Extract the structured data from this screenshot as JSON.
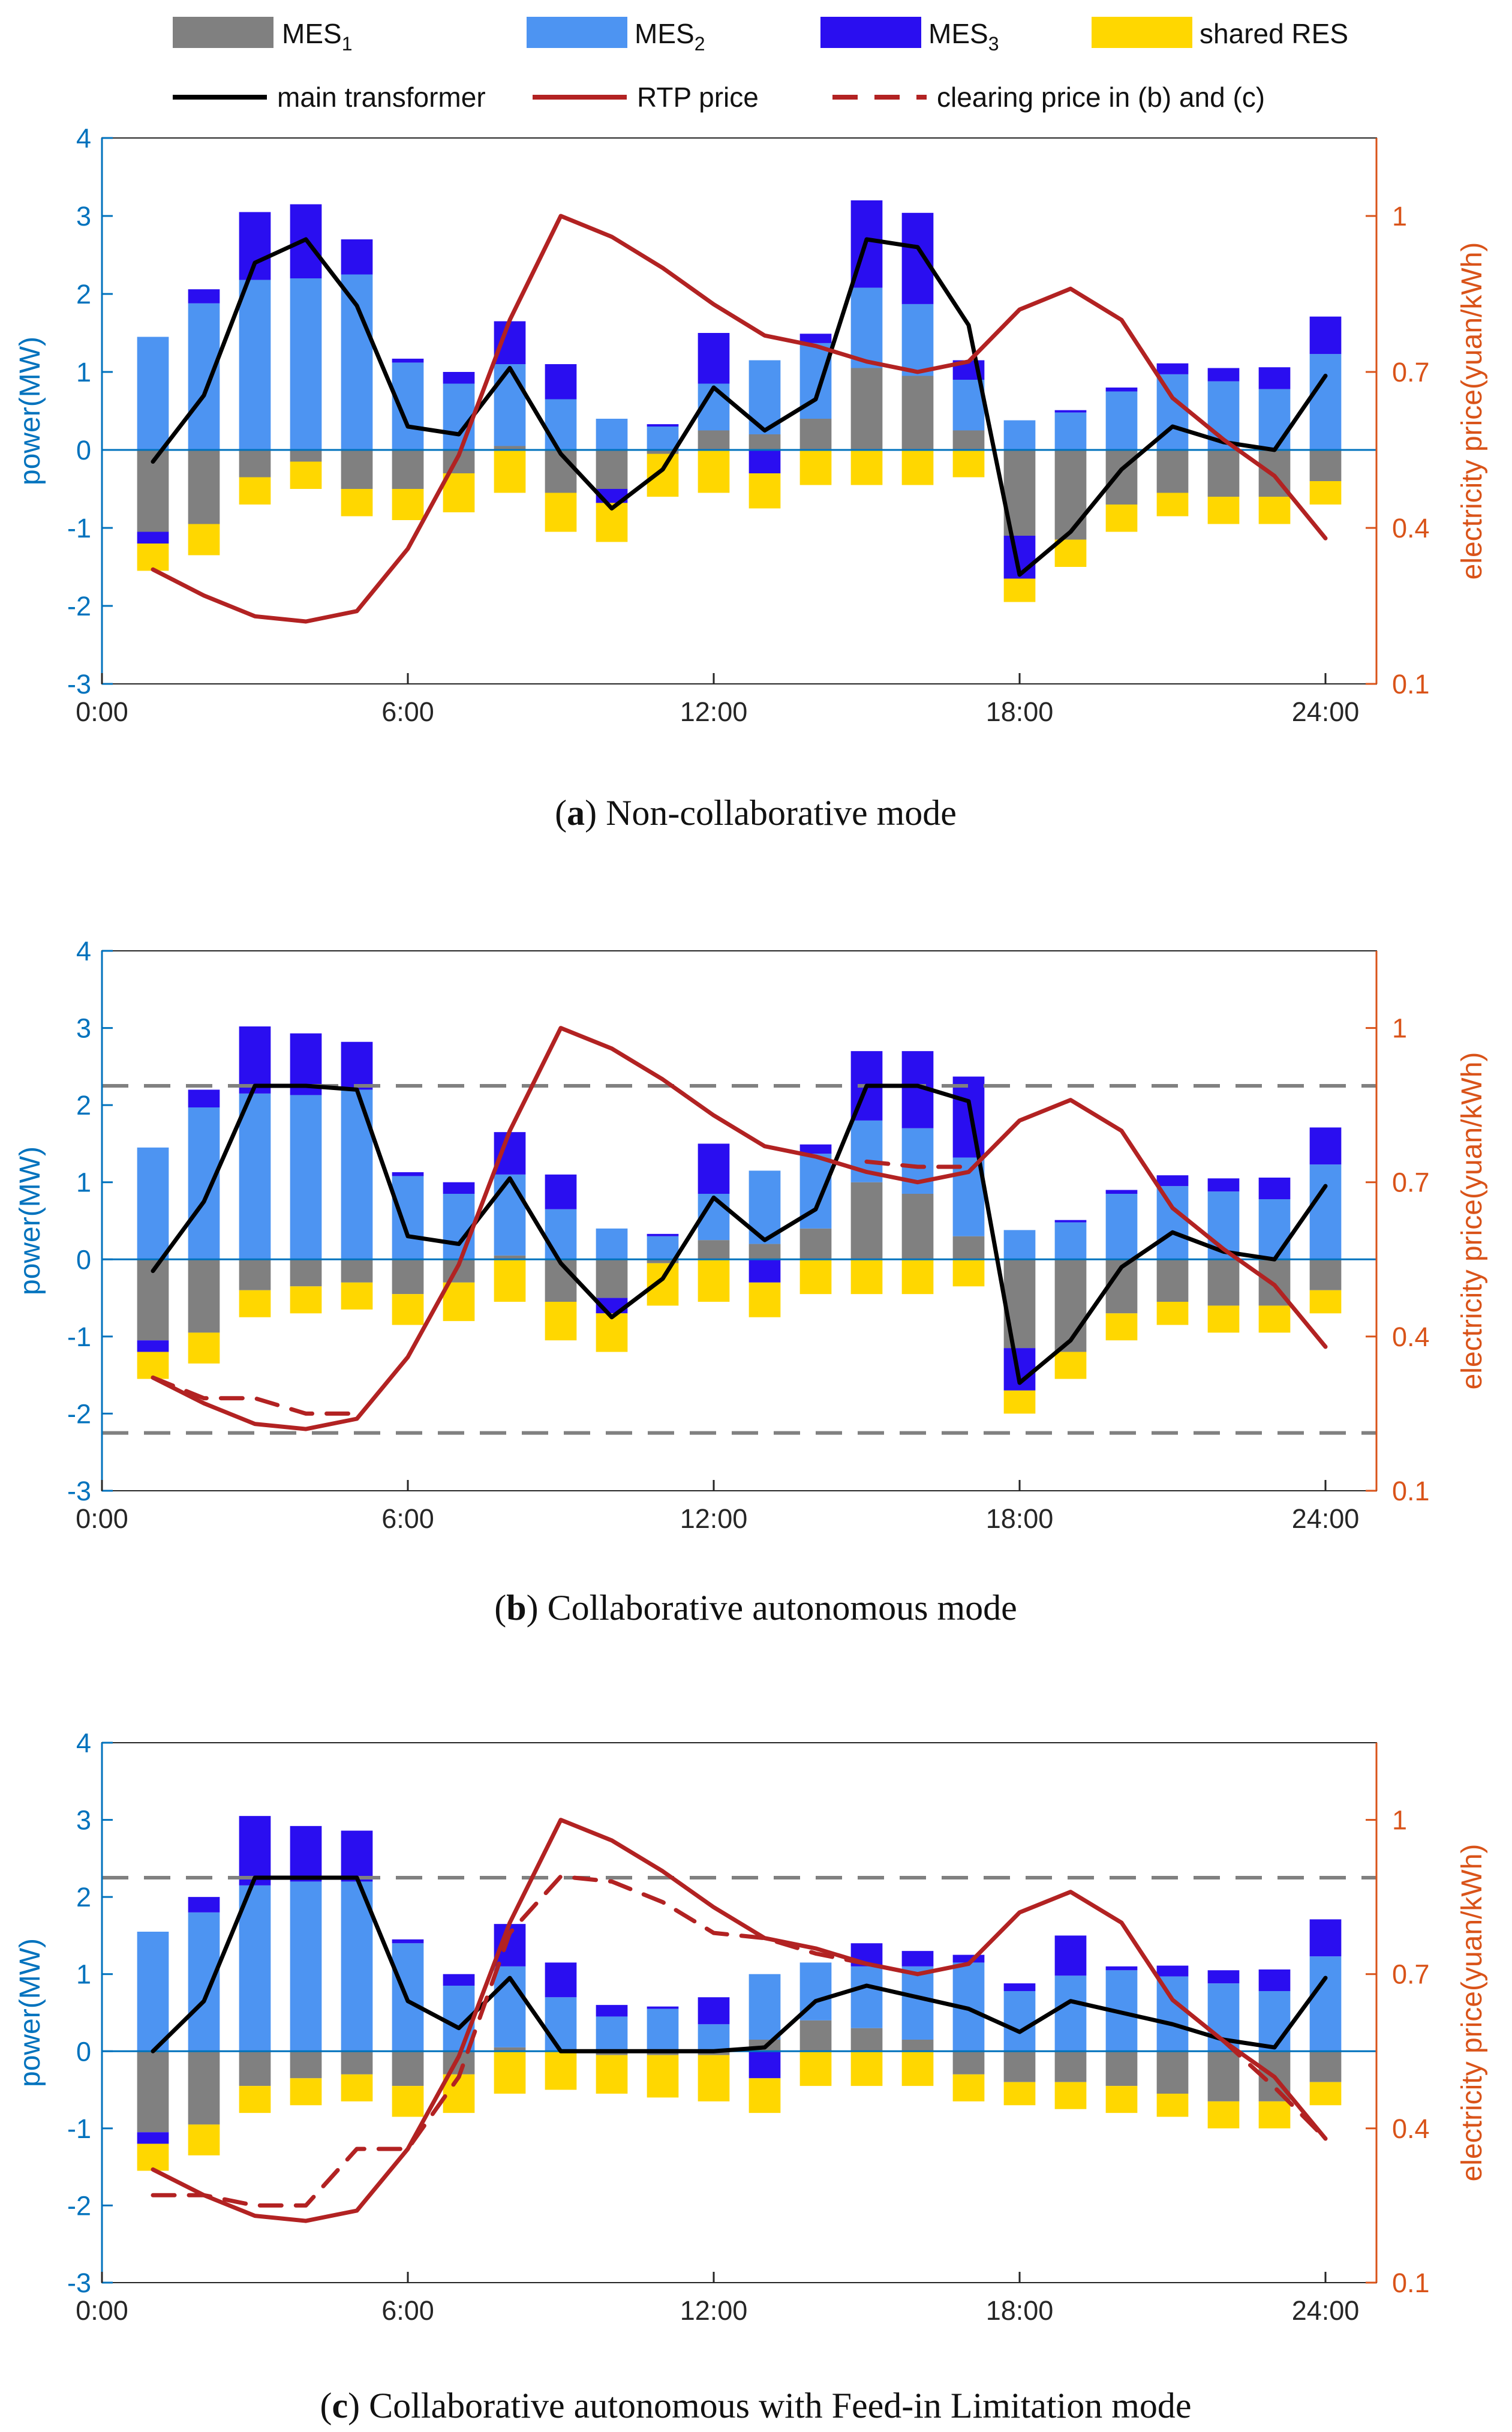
{
  "legend": {
    "mes1": {
      "base": "MES",
      "sub": "1"
    },
    "mes2": {
      "base": "MES",
      "sub": "2"
    },
    "mes3": {
      "base": "MES",
      "sub": "3"
    },
    "shared_res": "shared RES",
    "main_transformer": "main transformer",
    "rtp_price": "RTP price",
    "clearing_price": "clearing price in (b) and (c)"
  },
  "colors": {
    "mes1": "#808080",
    "mes2": "#4d94f2",
    "mes3": "#2a0ef0",
    "shared_res": "#ffd700",
    "transformer": "#000000",
    "rtp": "#b22222",
    "clearing": "#b22222",
    "limit": "#808080",
    "left_axis": "#0072bd",
    "right_axis": "#d95319",
    "zero_line": "#0072bd"
  },
  "chart_data": [
    {
      "panel": "a",
      "type": "bar",
      "caption_letter": "a",
      "caption_text": "Non-collaborative mode",
      "ylabel": "power(MW)",
      "ylabel_right": "electricity price(yuan/kWh)",
      "ylim": [
        -3,
        4
      ],
      "yticks": [
        -3,
        -2,
        -1,
        0,
        1,
        2,
        3,
        4
      ],
      "ylim_right": [
        0.1,
        1.15
      ],
      "yticks_right": [
        0.1,
        0.4,
        0.7,
        1
      ],
      "xlim": [
        0,
        25
      ],
      "xticks": [
        0,
        6,
        12,
        18,
        24
      ],
      "xtick_labels": [
        "0:00",
        "6:00",
        "12:00",
        "18:00",
        "24:00"
      ],
      "x": [
        1,
        2,
        3,
        4,
        5,
        6,
        7,
        8,
        9,
        10,
        11,
        12,
        13,
        14,
        15,
        16,
        17,
        18,
        19,
        20,
        21,
        22,
        23,
        24
      ],
      "series": [
        {
          "name": "MES1",
          "key": "mes1",
          "values": [
            -1.05,
            -0.95,
            -0.35,
            -0.15,
            -0.5,
            -0.5,
            -0.3,
            0.05,
            -0.55,
            -0.5,
            -0.05,
            0.25,
            0.2,
            0.4,
            1.05,
            0.95,
            0.25,
            -1.1,
            -1.15,
            -0.7,
            -0.55,
            -0.6,
            -0.6,
            -0.4
          ]
        },
        {
          "name": "MES2",
          "key": "mes2",
          "values": [
            1.45,
            1.88,
            2.18,
            2.2,
            2.25,
            1.12,
            0.85,
            1.05,
            0.65,
            0.4,
            0.3,
            0.6,
            0.95,
            0.97,
            1.03,
            0.92,
            0.65,
            0.38,
            0.48,
            0.75,
            0.97,
            0.88,
            0.78,
            1.23
          ]
        },
        {
          "name": "MES3",
          "key": "mes3",
          "values": [
            -0.15,
            0.18,
            0.87,
            0.95,
            0.45,
            0.05,
            0.15,
            0.55,
            0.45,
            -0.18,
            0.03,
            0.65,
            -0.3,
            0.12,
            1.12,
            1.17,
            0.25,
            -0.55,
            0.03,
            0.05,
            0.14,
            0.17,
            0.28,
            0.48
          ]
        },
        {
          "name": "shared RES",
          "key": "shared_res",
          "values": [
            -0.35,
            -0.4,
            -0.35,
            -0.35,
            -0.35,
            -0.4,
            -0.5,
            -0.55,
            -0.5,
            -0.5,
            -0.55,
            -0.55,
            -0.45,
            -0.45,
            -0.45,
            -0.45,
            -0.35,
            -0.3,
            -0.35,
            -0.35,
            -0.3,
            -0.35,
            -0.35,
            -0.3
          ]
        }
      ],
      "transformer": [
        -0.15,
        0.7,
        2.4,
        2.7,
        1.85,
        0.3,
        0.2,
        1.05,
        -0.05,
        -0.75,
        -0.25,
        0.8,
        0.25,
        0.65,
        2.7,
        2.6,
        1.6,
        -1.6,
        -1.05,
        -0.25,
        0.3,
        0.1,
        0.0,
        0.95
      ],
      "rtp": [
        0.32,
        0.27,
        0.23,
        0.22,
        0.24,
        0.36,
        0.54,
        0.8,
        1.0,
        0.96,
        0.9,
        0.83,
        0.77,
        0.75,
        0.72,
        0.7,
        0.72,
        0.82,
        0.86,
        0.8,
        0.65,
        0.57,
        0.5,
        0.38
      ],
      "clearing": [],
      "limit_lines": []
    },
    {
      "panel": "b",
      "type": "bar",
      "caption_letter": "b",
      "caption_text": "Collaborative autonomous mode",
      "ylabel": "power(MW)",
      "ylabel_right": "electricity price(yuan/kWh)",
      "ylim": [
        -3,
        4
      ],
      "yticks": [
        -3,
        -2,
        -1,
        0,
        1,
        2,
        3,
        4
      ],
      "ylim_right": [
        0.1,
        1.15
      ],
      "yticks_right": [
        0.1,
        0.4,
        0.7,
        1
      ],
      "xlim": [
        0,
        25
      ],
      "xticks": [
        0,
        6,
        12,
        18,
        24
      ],
      "xtick_labels": [
        "0:00",
        "6:00",
        "12:00",
        "18:00",
        "24:00"
      ],
      "x": [
        1,
        2,
        3,
        4,
        5,
        6,
        7,
        8,
        9,
        10,
        11,
        12,
        13,
        14,
        15,
        16,
        17,
        18,
        19,
        20,
        21,
        22,
        23,
        24
      ],
      "series": [
        {
          "name": "MES1",
          "key": "mes1",
          "values": [
            -1.05,
            -0.95,
            -0.4,
            -0.35,
            -0.3,
            -0.45,
            -0.3,
            0.05,
            -0.55,
            -0.5,
            -0.05,
            0.25,
            0.2,
            0.4,
            1.0,
            0.85,
            0.3,
            -1.15,
            -1.2,
            -0.7,
            -0.55,
            -0.6,
            -0.6,
            -0.4
          ]
        },
        {
          "name": "MES2",
          "key": "mes2",
          "values": [
            1.45,
            1.97,
            2.15,
            2.13,
            2.2,
            1.08,
            0.85,
            1.05,
            0.65,
            0.4,
            0.3,
            0.6,
            0.95,
            0.97,
            0.8,
            0.85,
            1.02,
            0.38,
            0.48,
            0.85,
            0.95,
            0.88,
            0.78,
            1.23
          ]
        },
        {
          "name": "MES3",
          "key": "mes3",
          "values": [
            -0.15,
            0.23,
            0.87,
            0.8,
            0.62,
            0.05,
            0.15,
            0.55,
            0.45,
            -0.2,
            0.03,
            0.65,
            -0.3,
            0.12,
            0.9,
            1.0,
            1.05,
            -0.55,
            0.03,
            0.05,
            0.14,
            0.17,
            0.28,
            0.48
          ]
        },
        {
          "name": "shared RES",
          "key": "shared_res",
          "values": [
            -0.35,
            -0.4,
            -0.35,
            -0.35,
            -0.35,
            -0.4,
            -0.5,
            -0.55,
            -0.5,
            -0.5,
            -0.55,
            -0.55,
            -0.45,
            -0.45,
            -0.45,
            -0.45,
            -0.35,
            -0.3,
            -0.35,
            -0.35,
            -0.3,
            -0.35,
            -0.35,
            -0.3
          ]
        }
      ],
      "transformer": [
        -0.15,
        0.75,
        2.25,
        2.25,
        2.2,
        0.3,
        0.2,
        1.05,
        -0.05,
        -0.75,
        -0.25,
        0.8,
        0.25,
        0.65,
        2.25,
        2.25,
        2.05,
        -1.6,
        -1.05,
        -0.1,
        0.35,
        0.1,
        0.0,
        0.95
      ],
      "rtp": [
        0.32,
        0.27,
        0.23,
        0.22,
        0.24,
        0.36,
        0.54,
        0.8,
        1.0,
        0.96,
        0.9,
        0.83,
        0.77,
        0.75,
        0.72,
        0.7,
        0.72,
        0.82,
        0.86,
        0.8,
        0.65,
        0.57,
        0.5,
        0.38
      ],
      "clearing": [
        0.32,
        0.28,
        0.28,
        0.25,
        0.25,
        null,
        null,
        null,
        null,
        null,
        null,
        null,
        null,
        null,
        0.74,
        0.73,
        0.73,
        null,
        null,
        null,
        null,
        null,
        null,
        null
      ],
      "limit_lines": [
        2.25,
        -2.25
      ]
    },
    {
      "panel": "c",
      "type": "bar",
      "caption_letter": "c",
      "caption_text": "Collaborative autonomous with Feed-in Limitation mode",
      "ylabel": "power(MW)",
      "ylabel_right": "electricity price(yuan/kWh)",
      "ylim": [
        -3,
        4
      ],
      "yticks": [
        -3,
        -2,
        -1,
        0,
        1,
        2,
        3,
        4
      ],
      "ylim_right": [
        0.1,
        1.15
      ],
      "yticks_right": [
        0.1,
        0.4,
        0.7,
        1
      ],
      "xlim": [
        0,
        25
      ],
      "xticks": [
        0,
        6,
        12,
        18,
        24
      ],
      "xtick_labels": [
        "0:00",
        "6:00",
        "12:00",
        "18:00",
        "24:00"
      ],
      "x": [
        1,
        2,
        3,
        4,
        5,
        6,
        7,
        8,
        9,
        10,
        11,
        12,
        13,
        14,
        15,
        16,
        17,
        18,
        19,
        20,
        21,
        22,
        23,
        24
      ],
      "series": [
        {
          "name": "MES1",
          "key": "mes1",
          "values": [
            -1.05,
            -0.95,
            -0.45,
            -0.35,
            -0.3,
            -0.45,
            -0.3,
            0.05,
            0.0,
            -0.05,
            -0.05,
            -0.05,
            0.15,
            0.4,
            0.3,
            0.15,
            -0.3,
            -0.4,
            -0.4,
            -0.45,
            -0.55,
            -0.65,
            -0.65,
            -0.4
          ]
        },
        {
          "name": "MES2",
          "key": "mes2",
          "values": [
            1.55,
            1.8,
            2.15,
            2.2,
            2.2,
            1.4,
            0.85,
            1.05,
            0.7,
            0.45,
            0.55,
            0.35,
            0.85,
            0.75,
            0.8,
            0.95,
            1.15,
            0.78,
            0.98,
            1.05,
            0.97,
            0.88,
            0.78,
            1.23
          ]
        },
        {
          "name": "MES3",
          "key": "mes3",
          "values": [
            -0.15,
            0.2,
            0.9,
            0.72,
            0.66,
            0.05,
            0.15,
            0.55,
            0.45,
            0.15,
            0.03,
            0.35,
            -0.35,
            0.0,
            0.3,
            0.2,
            0.1,
            0.1,
            0.52,
            0.05,
            0.14,
            0.17,
            0.28,
            0.48
          ]
        },
        {
          "name": "shared RES",
          "key": "shared_res",
          "values": [
            -0.35,
            -0.4,
            -0.35,
            -0.35,
            -0.35,
            -0.4,
            -0.5,
            -0.55,
            -0.5,
            -0.5,
            -0.55,
            -0.6,
            -0.45,
            -0.45,
            -0.45,
            -0.45,
            -0.35,
            -0.3,
            -0.35,
            -0.35,
            -0.3,
            -0.35,
            -0.35,
            -0.3
          ]
        }
      ],
      "transformer": [
        0.0,
        0.65,
        2.25,
        2.25,
        2.25,
        0.65,
        0.3,
        0.95,
        0.0,
        0.0,
        0.0,
        0.0,
        0.05,
        0.65,
        0.85,
        0.7,
        0.55,
        0.25,
        0.65,
        0.5,
        0.35,
        0.15,
        0.05,
        0.95
      ],
      "rtp": [
        0.32,
        0.27,
        0.23,
        0.22,
        0.24,
        0.36,
        0.54,
        0.8,
        1.0,
        0.96,
        0.9,
        0.83,
        0.77,
        0.75,
        0.72,
        0.7,
        0.72,
        0.82,
        0.86,
        0.8,
        0.65,
        0.57,
        0.5,
        0.38
      ],
      "clearing": [
        0.27,
        0.27,
        0.25,
        0.25,
        0.36,
        0.36,
        0.5,
        0.78,
        0.89,
        0.88,
        0.84,
        0.78,
        0.77,
        0.74,
        0.72,
        0.7,
        null,
        null,
        null,
        null,
        null,
        0.57,
        0.48,
        0.38
      ],
      "limit_lines": [
        2.25
      ]
    }
  ]
}
